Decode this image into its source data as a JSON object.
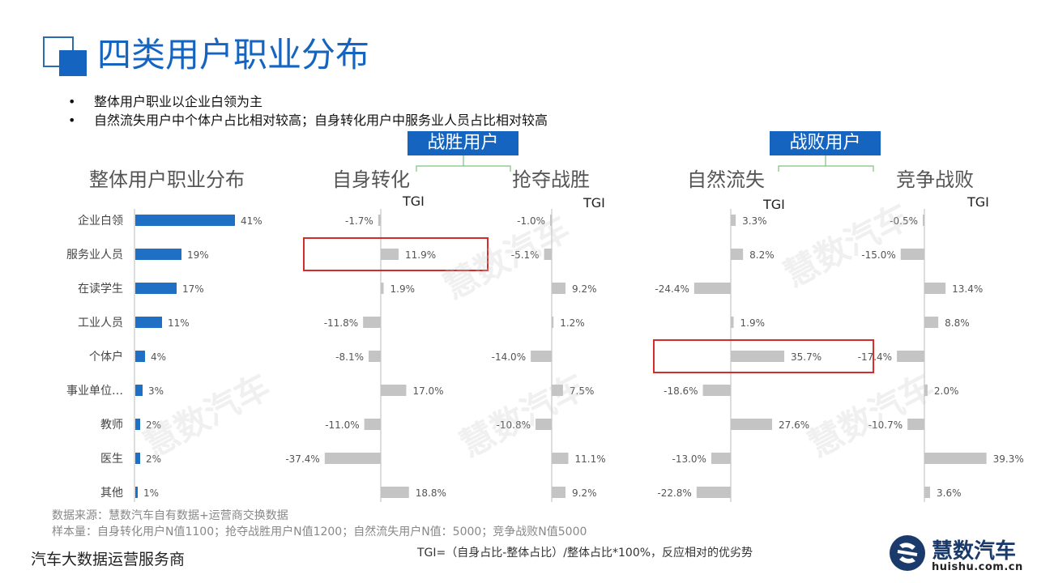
{
  "title": "四类用户职业分布",
  "bullets": [
    "整体用户职业以企业白领为主",
    "自然流失用户中个体户占比相对较高；自身转化用户中服务业人员占比相对较高"
  ],
  "groups": {
    "win": "战胜用户",
    "lose": "战败用户"
  },
  "tgi_label": "TGI",
  "footer": {
    "source": "数据来源：慧数汽车自有数据+运营商交换数据",
    "sample": "样本量：自身转化用户N值1100；抢夺战胜用户N值1200；自然流失用户N值：5000；竞争战败N值5000",
    "company": "汽车大数据运营服务商",
    "formula": "TGI=（自身占比-整体占比）/整体占比*100%，反应相对的优劣势"
  },
  "logo": {
    "name": "慧数汽车",
    "url": "huishu.com.cn",
    "watermark": "慧数汽车"
  },
  "colors": {
    "title": "#1565c0",
    "bar_primary": "#1f6fc5",
    "bar_tgi": "#c4c4c4",
    "highlight": "#d62b2b"
  },
  "chart_data": [
    {
      "type": "bar",
      "orientation": "horizontal",
      "title": "整体用户职业分布",
      "categories": [
        "企业白领",
        "服务业人员",
        "在读学生",
        "工业人员",
        "个体户",
        "事业单位…",
        "教师",
        "医生",
        "其他"
      ],
      "values": [
        41,
        19,
        17,
        11,
        4,
        3,
        2,
        2,
        1
      ],
      "unit": "%"
    },
    {
      "type": "bar",
      "orientation": "horizontal",
      "title": "自身转化",
      "series": [
        {
          "name": "TGI",
          "values": [
            -1.7,
            11.9,
            1.9,
            -11.8,
            -8.1,
            17.0,
            -11.0,
            -37.4,
            18.8
          ]
        }
      ],
      "unit": "%",
      "highlight": "服务业人员"
    },
    {
      "type": "bar",
      "orientation": "horizontal",
      "title": "抢夺战胜",
      "series": [
        {
          "name": "TGI",
          "values": [
            -1.0,
            -5.1,
            9.2,
            1.2,
            -14.0,
            7.5,
            -10.8,
            11.1,
            9.2
          ]
        }
      ],
      "unit": "%"
    },
    {
      "type": "bar",
      "orientation": "horizontal",
      "title": "自然流失",
      "series": [
        {
          "name": "TGI",
          "values": [
            3.3,
            8.2,
            -24.4,
            1.9,
            35.7,
            -18.6,
            27.6,
            -13.0,
            -22.8
          ]
        }
      ],
      "unit": "%",
      "highlight": "个体户"
    },
    {
      "type": "bar",
      "orientation": "horizontal",
      "title": "竞争战败",
      "series": [
        {
          "name": "TGI",
          "values": [
            -0.5,
            -15.0,
            13.4,
            8.8,
            -17.4,
            2.0,
            -10.7,
            39.3,
            3.6
          ]
        }
      ],
      "unit": "%"
    }
  ]
}
